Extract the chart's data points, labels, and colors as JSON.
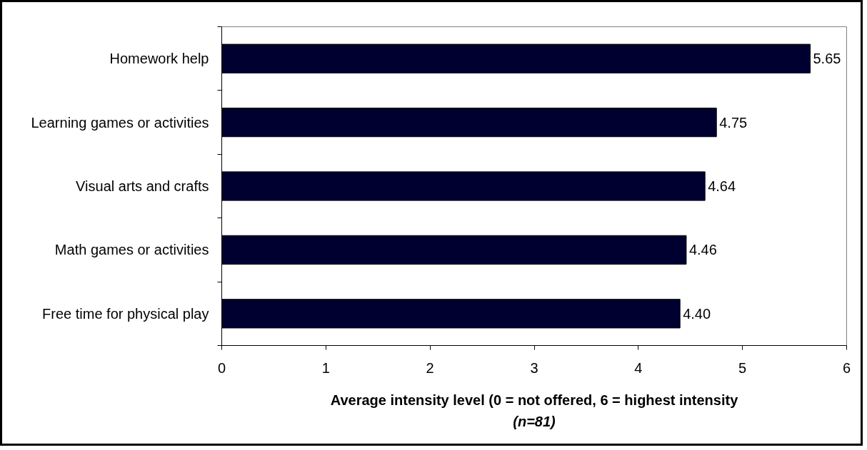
{
  "chart_data": {
    "type": "bar",
    "orientation": "horizontal",
    "categories": [
      "Homework help",
      "Learning games or activities",
      "Visual arts and crafts",
      "Math games or activities",
      "Free time for physical play"
    ],
    "values": [
      5.65,
      4.75,
      4.64,
      4.46,
      4.4
    ],
    "value_labels": [
      "5.65",
      "4.75",
      "4.64",
      "4.46",
      "4.40"
    ],
    "color": "#000030",
    "xlim": [
      0,
      6
    ],
    "xticks": [
      0,
      1,
      2,
      3,
      4,
      5,
      6
    ],
    "xlabel": "Average intensity level (0 = not offered, 6 = highest intensity",
    "annotations": [
      "(n=81)"
    ],
    "grid": false
  }
}
